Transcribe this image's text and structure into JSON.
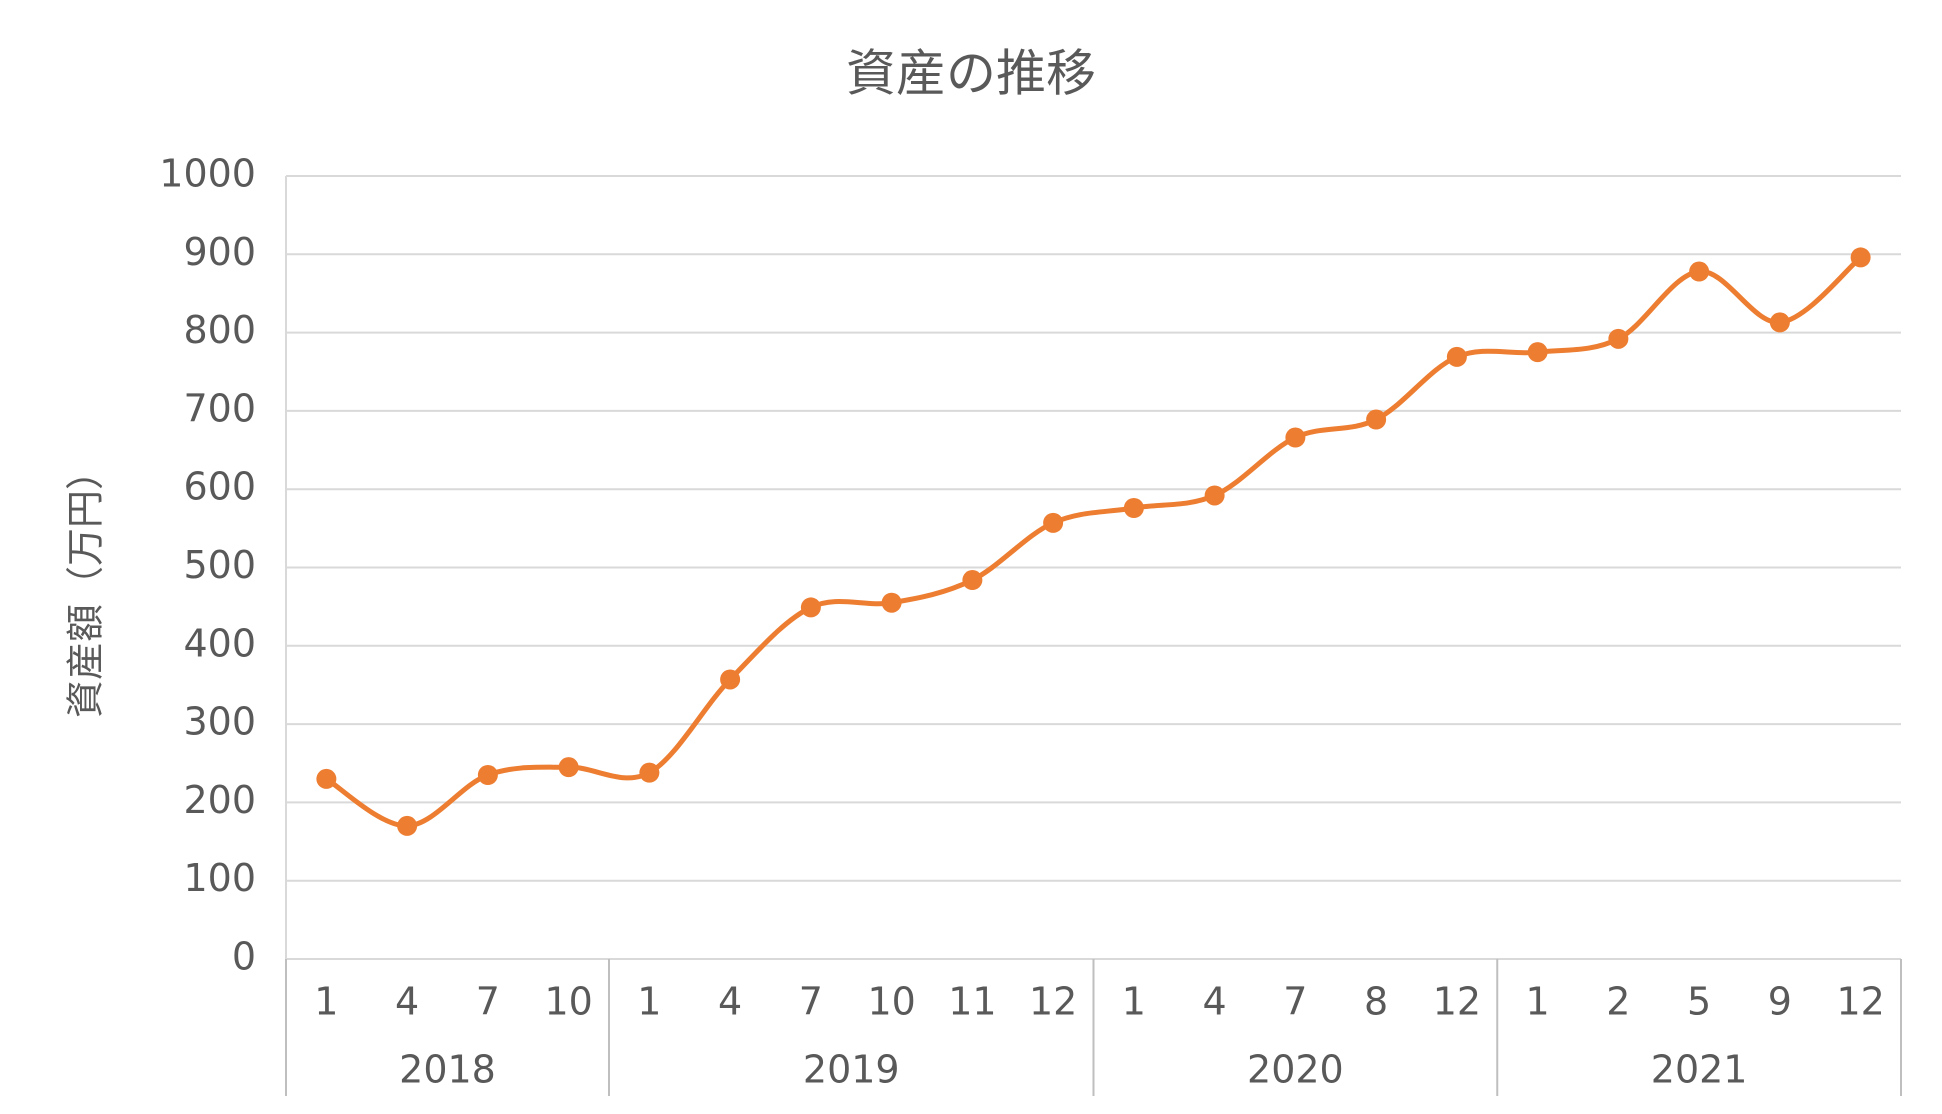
{
  "chart_data": {
    "type": "line",
    "title": "資産の推移",
    "y_label": "資産額（万円）",
    "category_groups": [
      {
        "label": "2018",
        "categories": [
          "1",
          "4",
          "7",
          "10"
        ]
      },
      {
        "label": "2019",
        "categories": [
          "1",
          "4",
          "7",
          "10",
          "11",
          "12"
        ]
      },
      {
        "label": "2020",
        "categories": [
          "1",
          "4",
          "7",
          "8",
          "12"
        ]
      },
      {
        "label": "2021",
        "categories": [
          "1",
          "2",
          "5",
          "9",
          "12"
        ]
      }
    ],
    "values": [
      230,
      170,
      235,
      245,
      238,
      357,
      449,
      455,
      484,
      557,
      576,
      592,
      666,
      689,
      769,
      775,
      792,
      878,
      813,
      896
    ],
    "color": "#ed7d31",
    "smooth": true,
    "markers": true,
    "ylim": [
      0,
      1000
    ],
    "yticks": [
      0,
      100,
      200,
      300,
      400,
      500,
      600,
      700,
      800,
      900,
      1000
    ],
    "grid": true
  }
}
